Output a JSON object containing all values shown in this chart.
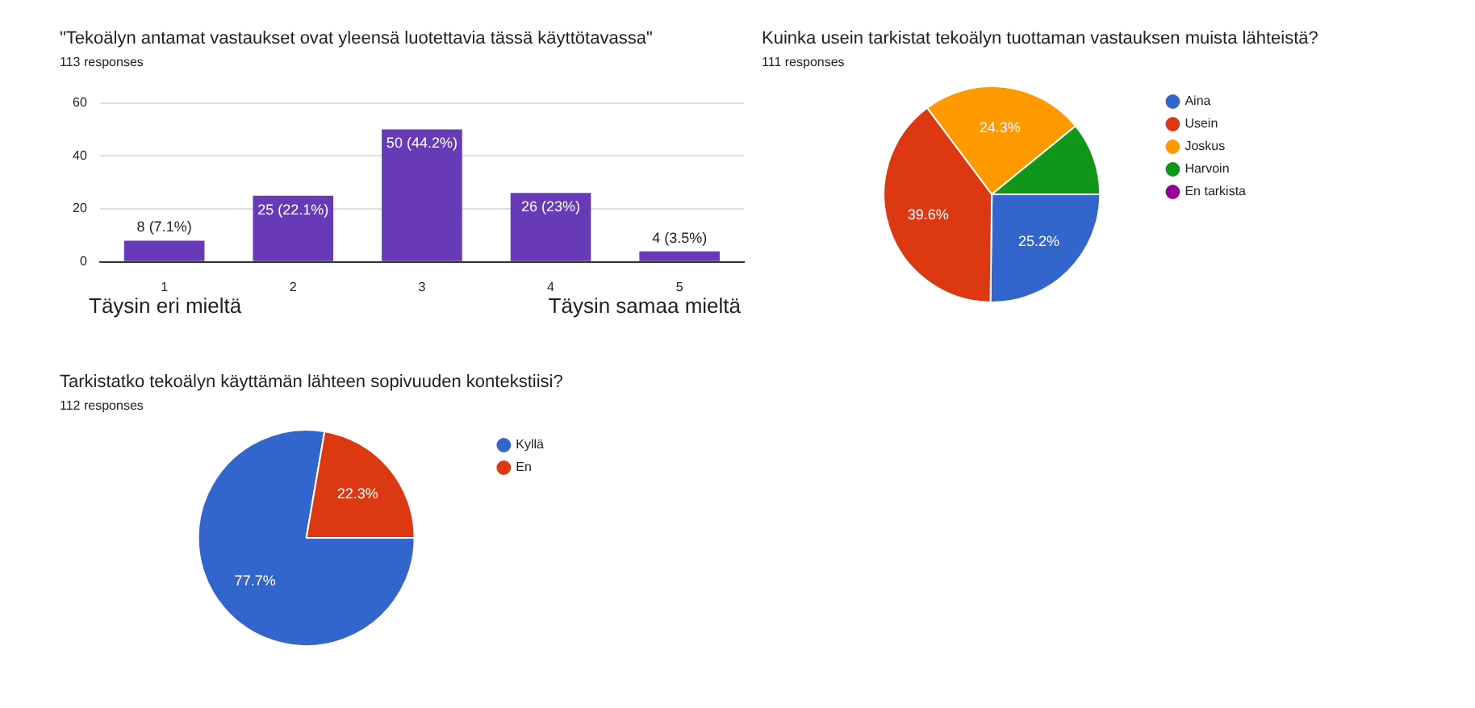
{
  "chart_data": [
    {
      "type": "bar",
      "title": "\"Tekoälyn antamat vastaukset ovat yleensä luotettavia tässä käyttötavassa\"",
      "subtitle": "113 responses",
      "categories": [
        "1",
        "2",
        "3",
        "4",
        "5"
      ],
      "values": [
        8,
        25,
        50,
        26,
        4
      ],
      "value_labels": [
        "8 (7.1%)",
        "25 (22.1%)",
        "50 (44.2%)",
        "26 (23%)",
        "4 (3.5%)"
      ],
      "color": "#673ab7",
      "ylim": [
        0,
        60
      ],
      "yticks": [
        0,
        20,
        40,
        60
      ],
      "grid": "y",
      "legend": false,
      "annotations": [
        "Täysin eri mieltä",
        "Täysin samaa mieltä"
      ]
    },
    {
      "type": "pie",
      "title": "Kuinka usein tarkistat tekoälyn tuottaman vastauksen muista lähteistä?",
      "subtitle": "111 responses",
      "categories": [
        "Aina",
        "Usein",
        "Joskus",
        "Harvoin",
        "En tarkista"
      ],
      "values": [
        25.2,
        39.6,
        24.3,
        10.9,
        0
      ],
      "colors": [
        "#3366cc",
        "#dc3912",
        "#ff9900",
        "#109618",
        "#990099"
      ],
      "value_labels": [
        "25.2%",
        "39.6%",
        "24.3%",
        null,
        null
      ],
      "legend": "right"
    },
    {
      "type": "pie",
      "title": "Tarkistatko tekoälyn käyttämän lähteen sopivuuden kontekstiisi?",
      "subtitle": "112 responses",
      "categories": [
        "Kyllä",
        "En"
      ],
      "values": [
        77.7,
        22.3
      ],
      "colors": [
        "#3366cc",
        "#dc3912"
      ],
      "value_labels": [
        "77.7%",
        "22.3%"
      ],
      "legend": "right"
    }
  ]
}
